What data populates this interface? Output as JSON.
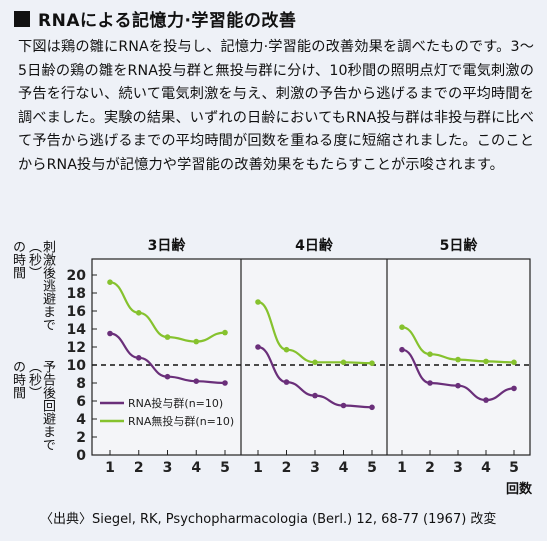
{
  "header": {
    "title": "RNAによる記憶力·学習能の改善"
  },
  "description": "下図は鶏の雛にRNAを投与し、記憶力·学習能の改善効果を調べたものです。3〜5日齢の鶏の雛をRNA投与群と無投与群に分け、10秒間の照明点灯で電気刺激の予告を行ない、続いて電気刺激を与え、刺激の予告から逃げるまでの平均時間を調べました。実験の結果、いずれの日齢においてもRNA投与群は非投与群に比べて予告から逃げるまでの平均時間が回数を重ねる度に短縮されました。このことからRNA投与が記憶力や学習能の改善効果をもたらすことが示唆されます。",
  "source": "〈出典〉Siegel, RK, Psychopharmacologia (Berl.) 12, 68-77 (1967) 改変",
  "colors": {
    "rna": "#6a2f7a",
    "control": "#86c22e",
    "reference": "#111111"
  },
  "chart_data": {
    "type": "line",
    "ylabel_top": [
      "の時間",
      "刺激後逃避まで（秒）"
    ],
    "ylabel_bottom": [
      "の時間",
      "予告後回避まで（秒）"
    ],
    "xlabel": "回数",
    "ylim": [
      0,
      20
    ],
    "yticks": [
      0,
      2,
      4,
      6,
      8,
      10,
      12,
      14,
      16,
      18,
      20
    ],
    "reference_line": 10,
    "x": [
      1,
      2,
      3,
      4,
      5
    ],
    "panels": [
      {
        "title": "3日齢",
        "series": [
          {
            "name": "RNA投与群(n=10)",
            "values": [
              13.5,
              10.8,
              8.7,
              8.2,
              8.0
            ]
          },
          {
            "name": "RNA無投与群(n=10)",
            "values": [
              19.2,
              15.8,
              13.1,
              12.6,
              13.6
            ]
          }
        ]
      },
      {
        "title": "4日齢",
        "series": [
          {
            "name": "RNA投与群(n=10)",
            "values": [
              12.0,
              8.1,
              6.6,
              5.5,
              5.3
            ]
          },
          {
            "name": "RNA無投与群(n=10)",
            "values": [
              17.0,
              11.7,
              10.3,
              10.3,
              10.2
            ]
          }
        ]
      },
      {
        "title": "5日齢",
        "series": [
          {
            "name": "RNA投与群(n=10)",
            "values": [
              11.7,
              8.0,
              7.7,
              6.1,
              7.4
            ]
          },
          {
            "name": "RNA無投与群(n=10)",
            "values": [
              14.2,
              11.2,
              10.6,
              10.4,
              10.3
            ]
          }
        ]
      }
    ],
    "legend": [
      {
        "label": "RNA投与群(n=10)",
        "color": "#6a2f7a"
      },
      {
        "label": "RNA無投与群(n=10)",
        "color": "#86c22e"
      }
    ]
  }
}
